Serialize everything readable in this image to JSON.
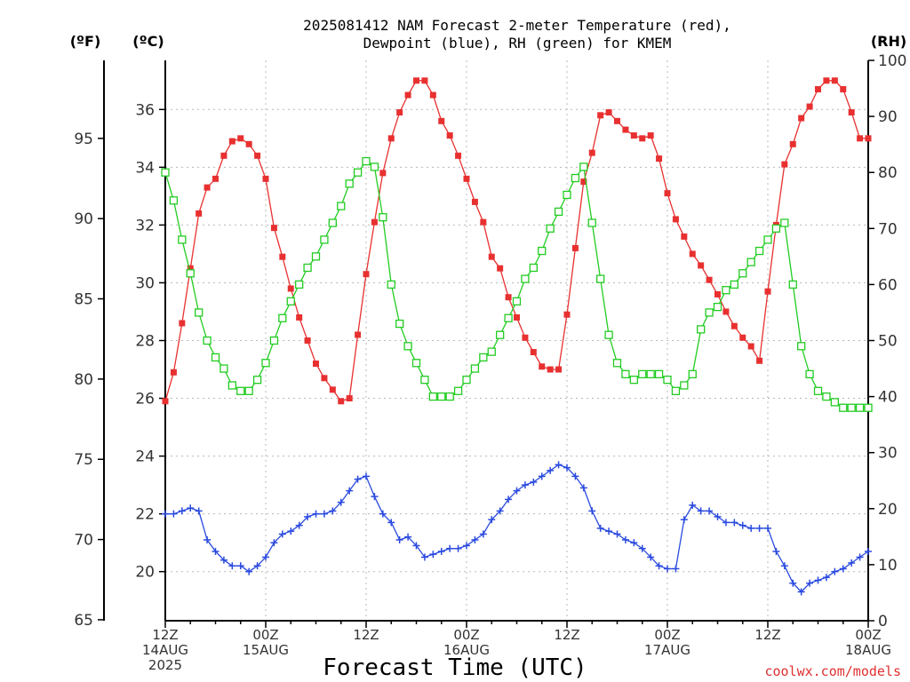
{
  "chart_data": {
    "type": "line",
    "title_line1": "2025081412 NAM Forecast 2-meter Temperature (red),",
    "title_line2": "Dewpoint (blue), RH (green) for KMEM",
    "xlabel": "Forecast Time (UTC)",
    "credit": "coolwx.com/models",
    "unit_f": "(ºF)",
    "unit_c": "(ºC)",
    "unit_rh": "(RH)",
    "x_range_hours": [
      0,
      84
    ],
    "x_ticks": [
      {
        "hour": 0,
        "line1": "12Z",
        "line2": "14AUG",
        "line3": "2025"
      },
      {
        "hour": 12,
        "line1": "00Z",
        "line2": "15AUG",
        "line3": ""
      },
      {
        "hour": 24,
        "line1": "12Z",
        "line2": "",
        "line3": ""
      },
      {
        "hour": 36,
        "line1": "00Z",
        "line2": "16AUG",
        "line3": ""
      },
      {
        "hour": 48,
        "line1": "12Z",
        "line2": "",
        "line3": ""
      },
      {
        "hour": 60,
        "line1": "00Z",
        "line2": "17AUG",
        "line3": ""
      },
      {
        "hour": 72,
        "line1": "12Z",
        "line2": "",
        "line3": ""
      },
      {
        "hour": 84,
        "line1": "00Z",
        "line2": "18AUG",
        "line3": ""
      }
    ],
    "ylim_c": [
      18.3,
      37.7
    ],
    "yticks_c": [
      20,
      22,
      24,
      26,
      28,
      30,
      32,
      34,
      36
    ],
    "yticks_f": [
      65,
      70,
      75,
      80,
      85,
      90,
      95
    ],
    "ylim_rh": [
      0,
      100
    ],
    "yticks_rh": [
      0,
      10,
      20,
      30,
      40,
      50,
      60,
      70,
      80,
      90,
      100
    ],
    "grid": true,
    "series": [
      {
        "name": "Temperature",
        "color": "#e83030",
        "marker": "filled-square",
        "axis": "celsius",
        "x": [
          0,
          1,
          2,
          3,
          4,
          5,
          6,
          7,
          8,
          9,
          10,
          11,
          12,
          13,
          14,
          15,
          16,
          17,
          18,
          19,
          20,
          21,
          22,
          23,
          24,
          25,
          26,
          27,
          28,
          29,
          30,
          31,
          32,
          33,
          34,
          35,
          36,
          37,
          38,
          39,
          40,
          41,
          42,
          43,
          44,
          45,
          46,
          47,
          48,
          49,
          50,
          51,
          52,
          53,
          54,
          55,
          56,
          57,
          58,
          59,
          60,
          61,
          62,
          63,
          64,
          65,
          66,
          67,
          68,
          69,
          70,
          71,
          72,
          73,
          74,
          75,
          76,
          77,
          78,
          79,
          80,
          81,
          82,
          83,
          84
        ],
        "values": [
          25.9,
          26.9,
          28.6,
          30.5,
          32.4,
          33.3,
          33.6,
          34.4,
          34.9,
          35.0,
          34.8,
          34.4,
          33.6,
          31.9,
          30.9,
          29.8,
          28.8,
          28.0,
          27.2,
          26.7,
          26.3,
          25.9,
          26.0,
          28.2,
          30.3,
          32.1,
          33.8,
          35.0,
          35.9,
          36.5,
          37.0,
          37.0,
          36.5,
          35.6,
          35.1,
          34.4,
          33.6,
          32.8,
          32.1,
          30.9,
          30.5,
          29.5,
          28.8,
          28.1,
          27.6,
          27.1,
          27.0,
          27.0,
          28.9,
          31.2,
          33.5,
          34.5,
          35.8,
          35.9,
          35.6,
          35.3,
          35.1,
          35.0,
          35.1,
          34.3,
          33.1,
          32.2,
          31.6,
          31.0,
          30.6,
          30.1,
          29.6,
          29.0,
          28.5,
          28.1,
          27.8,
          27.3,
          29.7,
          32.0,
          34.1,
          34.8,
          35.7,
          36.1,
          36.7,
          37.0,
          37.0,
          36.7,
          35.9,
          35.0,
          35.0
        ]
      },
      {
        "name": "Dewpoint",
        "color": "#2a4adf",
        "marker": "plus",
        "axis": "celsius",
        "x": [
          0,
          1,
          2,
          3,
          4,
          5,
          6,
          7,
          8,
          9,
          10,
          11,
          12,
          13,
          14,
          15,
          16,
          17,
          18,
          19,
          20,
          21,
          22,
          23,
          24,
          25,
          26,
          27,
          28,
          29,
          30,
          31,
          32,
          33,
          34,
          35,
          36,
          37,
          38,
          39,
          40,
          41,
          42,
          43,
          44,
          45,
          46,
          47,
          48,
          49,
          50,
          51,
          52,
          53,
          54,
          55,
          56,
          57,
          58,
          59,
          60,
          61,
          62,
          63,
          64,
          65,
          66,
          67,
          68,
          69,
          70,
          71,
          72,
          73,
          74,
          75,
          76,
          77,
          78,
          79,
          80,
          81,
          82,
          83,
          84
        ],
        "values": [
          22.0,
          22.0,
          22.1,
          22.2,
          22.1,
          21.1,
          20.7,
          20.4,
          20.2,
          20.2,
          20.0,
          20.2,
          20.5,
          21.0,
          21.3,
          21.4,
          21.6,
          21.9,
          22.0,
          22.0,
          22.1,
          22.4,
          22.8,
          23.2,
          23.3,
          22.6,
          22.0,
          21.7,
          21.1,
          21.2,
          20.9,
          20.5,
          20.6,
          20.7,
          20.8,
          20.8,
          20.9,
          21.1,
          21.3,
          21.8,
          22.1,
          22.5,
          22.8,
          23.0,
          23.1,
          23.3,
          23.5,
          23.7,
          23.6,
          23.3,
          22.9,
          22.1,
          21.5,
          21.4,
          21.3,
          21.1,
          21.0,
          20.8,
          20.5,
          20.2,
          20.1,
          20.1,
          21.8,
          22.3,
          22.1,
          22.1,
          21.9,
          21.7,
          21.7,
          21.6,
          21.5,
          21.5,
          21.5,
          20.7,
          20.2,
          19.6,
          19.3,
          19.6,
          19.7,
          19.8,
          20.0,
          20.1,
          20.3,
          20.5,
          20.7
        ]
      },
      {
        "name": "RH",
        "color": "#22cc22",
        "marker": "open-square",
        "axis": "rh",
        "x": [
          0,
          1,
          2,
          3,
          4,
          5,
          6,
          7,
          8,
          9,
          10,
          11,
          12,
          13,
          14,
          15,
          16,
          17,
          18,
          19,
          20,
          21,
          22,
          23,
          24,
          25,
          26,
          27,
          28,
          29,
          30,
          31,
          32,
          33,
          34,
          35,
          36,
          37,
          38,
          39,
          40,
          41,
          42,
          43,
          44,
          45,
          46,
          47,
          48,
          49,
          50,
          51,
          52,
          53,
          54,
          55,
          56,
          57,
          58,
          59,
          60,
          61,
          62,
          63,
          64,
          65,
          66,
          67,
          68,
          69,
          70,
          71,
          72,
          73,
          74,
          75,
          76,
          77,
          78,
          79,
          80,
          81,
          82,
          83,
          84
        ],
        "values": [
          80,
          75,
          68,
          62,
          55,
          50,
          47,
          45,
          42,
          41,
          41,
          43,
          46,
          50,
          54,
          57,
          60,
          63,
          65,
          68,
          71,
          74,
          78,
          80,
          82,
          81,
          72,
          60,
          53,
          49,
          46,
          43,
          40,
          40,
          40,
          41,
          43,
          45,
          47,
          48,
          51,
          54,
          57,
          61,
          63,
          66,
          70,
          73,
          76,
          79,
          81,
          71,
          61,
          51,
          46,
          44,
          43,
          44,
          44,
          44,
          43,
          41,
          42,
          44,
          52,
          55,
          56,
          59,
          60,
          62,
          64,
          66,
          68,
          70,
          71,
          60,
          49,
          44,
          41,
          40,
          39,
          38,
          38,
          38,
          38
        ]
      }
    ]
  }
}
